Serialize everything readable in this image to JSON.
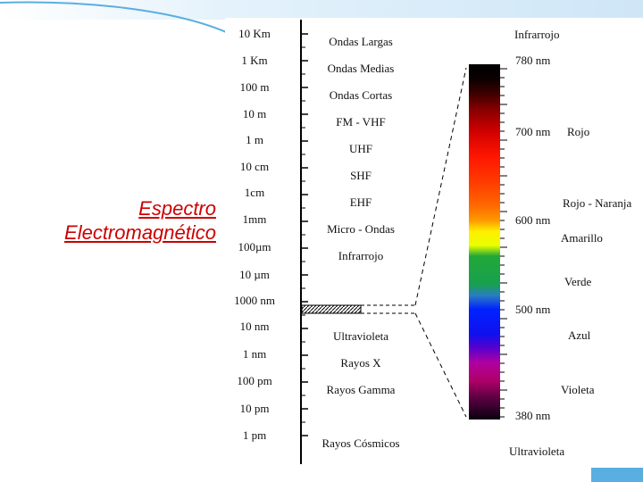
{
  "title": {
    "line1": "Espectro",
    "line2": "Electromagnético"
  },
  "wavelength_scale": [
    "10 Km",
    "1 Km",
    "100 m",
    "10 m",
    "1 m",
    "10 cm",
    "1cm",
    "1mm",
    "100µm",
    "10 µm",
    "1000 nm",
    "10 nm",
    "1 nm",
    "100 pm",
    "10 pm",
    "1 pm"
  ],
  "bands": [
    "Ondas Largas",
    "Ondas Medias",
    "Ondas Cortas",
    "FM - VHF",
    "UHF",
    "SHF",
    "EHF",
    "Micro - Ondas",
    "Infrarrojo",
    "Ultravioleta",
    "Rayos X",
    "Rayos Gamma",
    "Rayos Cósmicos"
  ],
  "visible": {
    "top_label": "Infrarrojo",
    "bottom_label": "Ultravioleta",
    "nm_marks": [
      "780 nm",
      "700 nm",
      "600 nm",
      "500 nm",
      "380 nm"
    ],
    "colors": [
      "Rojo",
      "Rojo - Naranja",
      "Amarillo",
      "Verde",
      "Azul",
      "Violeta"
    ]
  },
  "colors": {
    "title": "#cc0000",
    "accent_blue": "#5aaee0"
  }
}
